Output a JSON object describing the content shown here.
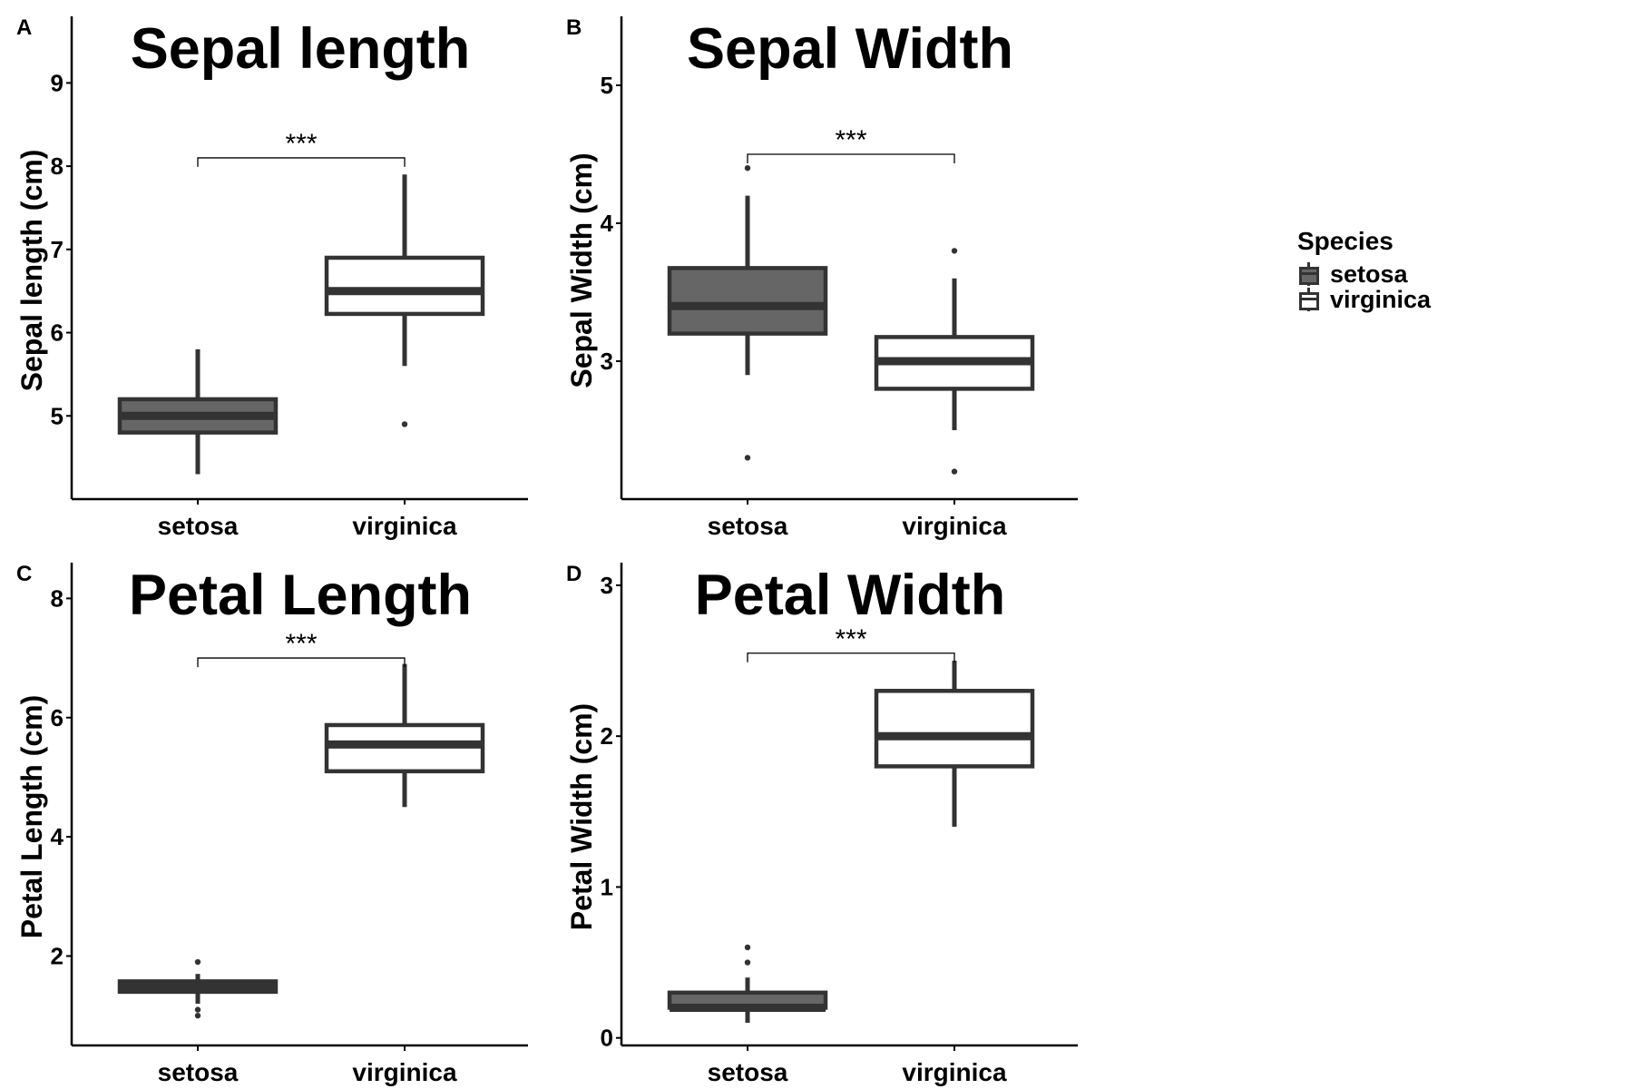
{
  "colors": {
    "setosa": "#666666",
    "virginica": "#ffffff",
    "line": "#333333"
  },
  "legend": {
    "title": "Species",
    "items": [
      {
        "label": "setosa",
        "fill": "#666666"
      },
      {
        "label": "virginica",
        "fill": "#ffffff"
      }
    ]
  },
  "chart_data": [
    {
      "panel": "A",
      "type": "boxplot",
      "title": "Sepal length",
      "ylabel": "Sepal length (cm)",
      "xlabel": "",
      "categories": [
        "setosa",
        "virginica"
      ],
      "ylim": [
        4.0,
        9.8
      ],
      "yticks": [
        5,
        6,
        7,
        8,
        9
      ],
      "series": [
        {
          "name": "setosa",
          "lower_whisker": 4.3,
          "q1": 4.8,
          "median": 5.0,
          "q3": 5.2,
          "upper_whisker": 5.8,
          "outliers": []
        },
        {
          "name": "virginica",
          "lower_whisker": 5.6,
          "q1": 6.225,
          "median": 6.5,
          "q3": 6.9,
          "upper_whisker": 7.9,
          "outliers": [
            4.9
          ]
        }
      ],
      "significance": {
        "label": "***",
        "bracket_y": 8.1
      }
    },
    {
      "panel": "B",
      "type": "boxplot",
      "title": "Sepal Width",
      "ylabel": "Sepal Width (cm)",
      "xlabel": "",
      "categories": [
        "setosa",
        "virginica"
      ],
      "ylim": [
        2.0,
        5.5
      ],
      "yticks": [
        3,
        4,
        5
      ],
      "series": [
        {
          "name": "setosa",
          "lower_whisker": 2.9,
          "q1": 3.2,
          "median": 3.4,
          "q3": 3.675,
          "upper_whisker": 4.2,
          "outliers": [
            4.4,
            2.3
          ]
        },
        {
          "name": "virginica",
          "lower_whisker": 2.5,
          "q1": 2.8,
          "median": 3.0,
          "q3": 3.175,
          "upper_whisker": 3.6,
          "outliers": [
            3.8,
            2.2
          ]
        }
      ],
      "significance": {
        "label": "***",
        "bracket_y": 4.5
      }
    },
    {
      "panel": "C",
      "type": "boxplot",
      "title": "Petal Length",
      "ylabel": "Petal Length (cm)",
      "xlabel": "",
      "categories": [
        "setosa",
        "virginica"
      ],
      "ylim": [
        0.5,
        8.6
      ],
      "yticks": [
        2,
        4,
        6,
        8
      ],
      "series": [
        {
          "name": "setosa",
          "lower_whisker": 1.2,
          "q1": 1.4,
          "median": 1.5,
          "q3": 1.575,
          "upper_whisker": 1.7,
          "outliers": [
            1.9,
            1.1,
            1.0
          ]
        },
        {
          "name": "virginica",
          "lower_whisker": 4.5,
          "q1": 5.1,
          "median": 5.55,
          "q3": 5.875,
          "upper_whisker": 6.9,
          "outliers": []
        }
      ],
      "significance": {
        "label": "***",
        "bracket_y": 7.0
      }
    },
    {
      "panel": "D",
      "type": "boxplot",
      "title": "Petal Width",
      "ylabel": "Petal Width (cm)",
      "xlabel": "",
      "categories": [
        "setosa",
        "virginica"
      ],
      "ylim": [
        -0.05,
        3.15
      ],
      "yticks": [
        0,
        1,
        2,
        3
      ],
      "series": [
        {
          "name": "setosa",
          "lower_whisker": 0.1,
          "q1": 0.2,
          "median": 0.2,
          "q3": 0.3,
          "upper_whisker": 0.4,
          "outliers": [
            0.6,
            0.5
          ]
        },
        {
          "name": "virginica",
          "lower_whisker": 1.4,
          "q1": 1.8,
          "median": 2.0,
          "q3": 2.3,
          "upper_whisker": 2.5,
          "outliers": []
        }
      ],
      "significance": {
        "label": "***",
        "bracket_y": 2.55
      }
    }
  ]
}
